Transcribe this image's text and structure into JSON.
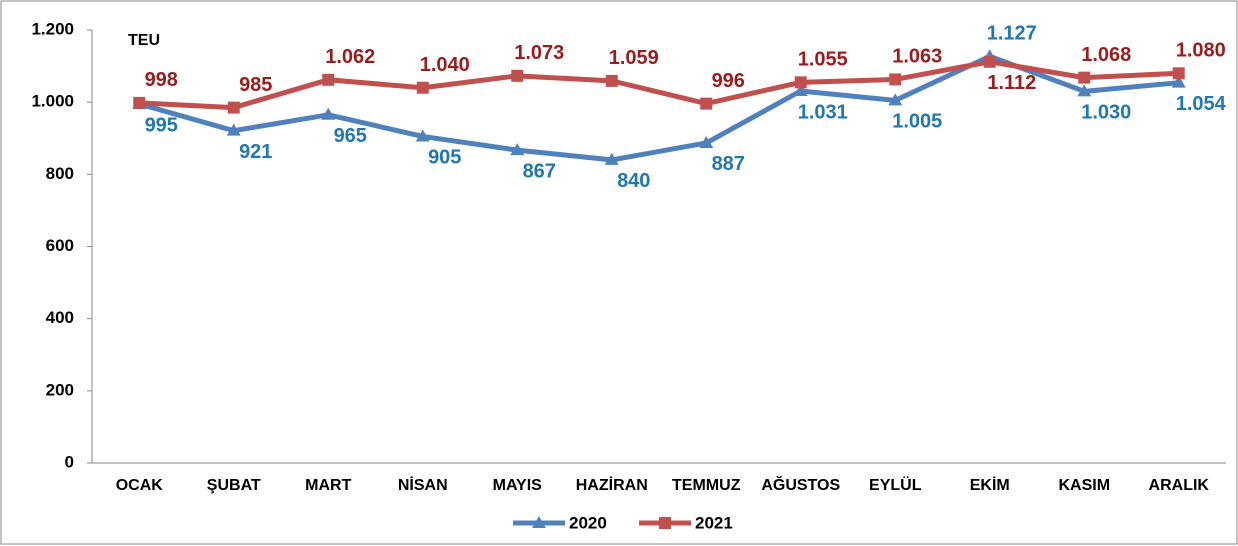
{
  "chart_data": {
    "type": "line",
    "annotation": "TEU",
    "categories": [
      "OCAK",
      "ŞUBAT",
      "MART",
      "NİSAN",
      "MAYIS",
      "HAZİRAN",
      "TEMMUZ",
      "AĞUSTOS",
      "EYLÜL",
      "EKİM",
      "KASIM",
      "ARALIK"
    ],
    "series": [
      {
        "name": "2020",
        "color": "#4f81bd",
        "label_color": "#1f77b4",
        "marker": "triangle",
        "values": [
          995,
          921,
          965,
          905,
          867,
          840,
          887,
          1031,
          1005,
          1127,
          1030,
          1054
        ],
        "value_labels": [
          "995",
          "921",
          "965",
          "905",
          "867",
          "840",
          "887",
          "1.031",
          "1.005",
          "1.127",
          "1.030",
          "1.054"
        ]
      },
      {
        "name": "2021",
        "color": "#c0504d",
        "label_color": "#9c1c1c",
        "marker": "square",
        "values": [
          998,
          985,
          1062,
          1040,
          1073,
          1059,
          996,
          1055,
          1063,
          1112,
          1068,
          1080
        ],
        "value_labels": [
          "998",
          "985",
          "1.062",
          "1.040",
          "1.073",
          "1.059",
          "996",
          "1.055",
          "1.063",
          "1.112",
          "1.068",
          "1.080"
        ]
      }
    ],
    "ylim": [
      0,
      1200
    ],
    "yticks": [
      0,
      200,
      400,
      600,
      800,
      {
        "value": 1000,
        "label": "1.000"
      },
      {
        "value": 1200,
        "label": "1.200"
      }
    ],
    "legend": "bottom"
  }
}
